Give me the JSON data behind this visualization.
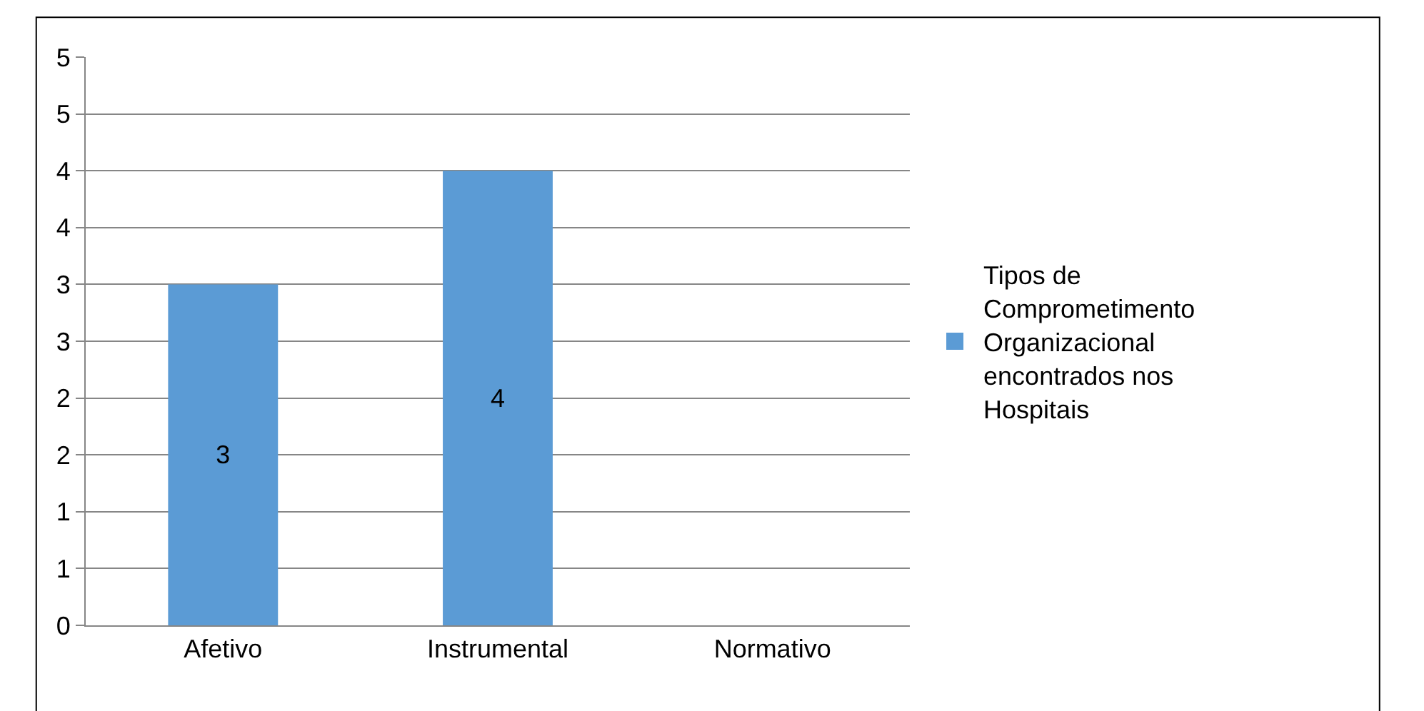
{
  "chart_data": {
    "type": "bar",
    "categories": [
      "Afetivo",
      "Instrumental",
      "Normativo"
    ],
    "series": [
      {
        "name": "Tipos de Comprometimento Organizacional encontrados nos Hospitais",
        "color": "#5b9bd5",
        "values": [
          3,
          4,
          0
        ],
        "value_labels": [
          "3",
          "4",
          null
        ]
      }
    ],
    "ylim": [
      0,
      5
    ],
    "yticks": [
      {
        "value": 0,
        "label": "0"
      },
      {
        "value": 0.5,
        "label": "1"
      },
      {
        "value": 1,
        "label": "1"
      },
      {
        "value": 1.5,
        "label": "2"
      },
      {
        "value": 2,
        "label": "2"
      },
      {
        "value": 2.5,
        "label": "3"
      },
      {
        "value": 3,
        "label": "3"
      },
      {
        "value": 3.5,
        "label": "4"
      },
      {
        "value": 4,
        "label": "4"
      },
      {
        "value": 4.5,
        "label": "5"
      },
      {
        "value": 5,
        "label": "5"
      }
    ],
    "grid": "y",
    "legend": "right"
  }
}
